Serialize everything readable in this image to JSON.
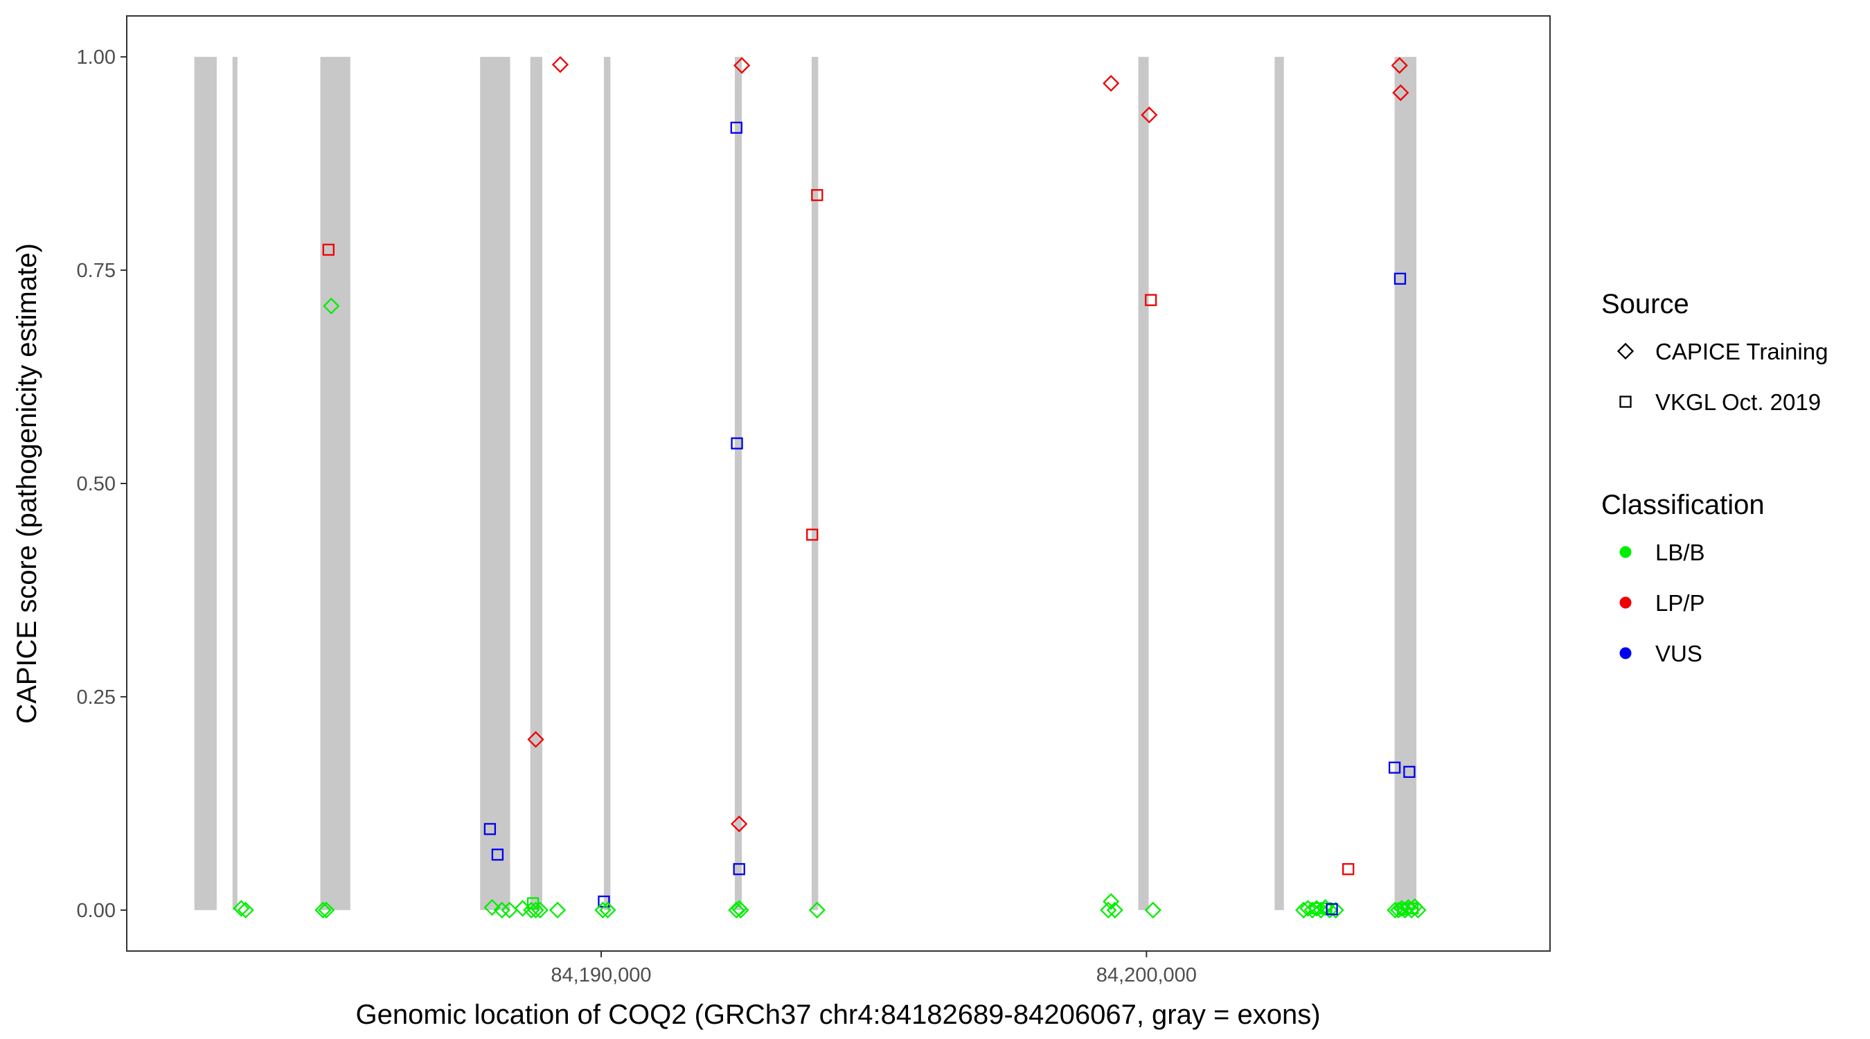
{
  "chart_data": {
    "type": "scatter",
    "xlabel": "Genomic location of COQ2 (GRCh37 chr4:84182689-84206067, gray = exons)",
    "ylabel": "CAPICE score (pathogenicity estimate)",
    "xlim": [
      84181300,
      84207400
    ],
    "ylim": [
      -0.048,
      1.048
    ],
    "x_ticks": [
      84190000,
      84200000
    ],
    "x_tick_labels": [
      "84,190,000",
      "84,200,000"
    ],
    "y_ticks": [
      0,
      0.25,
      0.5,
      0.75,
      1
    ],
    "y_tick_labels": [
      "0.00",
      "0.25",
      "0.50",
      "0.75",
      "1.00"
    ],
    "grid": false,
    "legend_position": "right",
    "exons": [
      [
        84182540,
        84182950
      ],
      [
        84183240,
        84183330
      ],
      [
        84184850,
        84185400
      ],
      [
        84187780,
        84188330
      ],
      [
        84188700,
        84188920
      ],
      [
        84190050,
        84190170
      ],
      [
        84192450,
        84192580
      ],
      [
        84193860,
        84193980
      ],
      [
        84199850,
        84200040
      ],
      [
        84202350,
        84202520
      ],
      [
        84204550,
        84204950
      ]
    ],
    "legend_source": {
      "title": "Source",
      "entries": [
        {
          "label": "CAPICE Training",
          "shape": "diamond"
        },
        {
          "label": "VKGL Oct. 2019",
          "shape": "square"
        }
      ]
    },
    "legend_classification": {
      "title": "Classification",
      "entries": [
        {
          "label": "LB/B",
          "color": "#00ee00"
        },
        {
          "label": "LP/P",
          "color": "#ee0000"
        },
        {
          "label": "VUS",
          "color": "#0000ee"
        }
      ]
    },
    "points": [
      {
        "x": 84183400,
        "y": 0.002,
        "source": "CAPICE Training",
        "class": "LB/B"
      },
      {
        "x": 84183480,
        "y": 0.0,
        "source": "CAPICE Training",
        "class": "LB/B"
      },
      {
        "x": 84184900,
        "y": 0.0,
        "source": "CAPICE Training",
        "class": "LB/B"
      },
      {
        "x": 84184960,
        "y": 0.0,
        "source": "CAPICE Training",
        "class": "LB/B"
      },
      {
        "x": 84185050,
        "y": 0.708,
        "source": "CAPICE Training",
        "class": "LB/B"
      },
      {
        "x": 84185000,
        "y": 0.774,
        "source": "VKGL Oct. 2019",
        "class": "LP/P"
      },
      {
        "x": 84187960,
        "y": 0.095,
        "source": "VKGL Oct. 2019",
        "class": "VUS"
      },
      {
        "x": 84188100,
        "y": 0.065,
        "source": "VKGL Oct. 2019",
        "class": "VUS"
      },
      {
        "x": 84188000,
        "y": 0.003,
        "source": "CAPICE Training",
        "class": "LB/B"
      },
      {
        "x": 84188180,
        "y": 0.0,
        "source": "CAPICE Training",
        "class": "LB/B"
      },
      {
        "x": 84188320,
        "y": 0.0,
        "source": "CAPICE Training",
        "class": "LB/B"
      },
      {
        "x": 84188560,
        "y": 0.002,
        "source": "CAPICE Training",
        "class": "LB/B"
      },
      {
        "x": 84188720,
        "y": 0.0,
        "source": "CAPICE Training",
        "class": "LB/B"
      },
      {
        "x": 84188800,
        "y": 0.0,
        "source": "CAPICE Training",
        "class": "LB/B"
      },
      {
        "x": 84188880,
        "y": 0.0,
        "source": "CAPICE Training",
        "class": "LB/B"
      },
      {
        "x": 84189200,
        "y": 0.0,
        "source": "CAPICE Training",
        "class": "LB/B"
      },
      {
        "x": 84188750,
        "y": 0.008,
        "source": "VKGL Oct. 2019",
        "class": "LB/B"
      },
      {
        "x": 84188800,
        "y": 0.2,
        "source": "CAPICE Training",
        "class": "LP/P"
      },
      {
        "x": 84189250,
        "y": 0.991,
        "source": "CAPICE Training",
        "class": "LP/P"
      },
      {
        "x": 84190050,
        "y": 0.01,
        "source": "VKGL Oct. 2019",
        "class": "VUS"
      },
      {
        "x": 84190030,
        "y": 0.0,
        "source": "CAPICE Training",
        "class": "LB/B"
      },
      {
        "x": 84190120,
        "y": 0.0,
        "source": "CAPICE Training",
        "class": "LB/B"
      },
      {
        "x": 84192480,
        "y": 0.917,
        "source": "VKGL Oct. 2019",
        "class": "VUS"
      },
      {
        "x": 84192490,
        "y": 0.547,
        "source": "VKGL Oct. 2019",
        "class": "VUS"
      },
      {
        "x": 84192530,
        "y": 0.048,
        "source": "VKGL Oct. 2019",
        "class": "VUS"
      },
      {
        "x": 84192580,
        "y": 0.99,
        "source": "CAPICE Training",
        "class": "LP/P"
      },
      {
        "x": 84192530,
        "y": 0.101,
        "source": "CAPICE Training",
        "class": "LP/P"
      },
      {
        "x": 84192480,
        "y": 0.0,
        "source": "CAPICE Training",
        "class": "LB/B"
      },
      {
        "x": 84192530,
        "y": 0.002,
        "source": "CAPICE Training",
        "class": "LB/B"
      },
      {
        "x": 84192560,
        "y": 0.0,
        "source": "CAPICE Training",
        "class": "LB/B"
      },
      {
        "x": 84193960,
        "y": 0.838,
        "source": "VKGL Oct. 2019",
        "class": "LP/P"
      },
      {
        "x": 84193870,
        "y": 0.44,
        "source": "VKGL Oct. 2019",
        "class": "LP/P"
      },
      {
        "x": 84193960,
        "y": 0.0,
        "source": "CAPICE Training",
        "class": "LB/B"
      },
      {
        "x": 84199350,
        "y": 0.969,
        "source": "CAPICE Training",
        "class": "LP/P"
      },
      {
        "x": 84200050,
        "y": 0.932,
        "source": "CAPICE Training",
        "class": "LP/P"
      },
      {
        "x": 84200080,
        "y": 0.715,
        "source": "VKGL Oct. 2019",
        "class": "LP/P"
      },
      {
        "x": 84199350,
        "y": 0.01,
        "source": "CAPICE Training",
        "class": "LB/B"
      },
      {
        "x": 84199300,
        "y": 0.0,
        "source": "CAPICE Training",
        "class": "LB/B"
      },
      {
        "x": 84199420,
        "y": 0.0,
        "source": "CAPICE Training",
        "class": "LB/B"
      },
      {
        "x": 84200120,
        "y": 0.0,
        "source": "CAPICE Training",
        "class": "LB/B"
      },
      {
        "x": 84202880,
        "y": 0.0,
        "source": "CAPICE Training",
        "class": "LB/B"
      },
      {
        "x": 84202960,
        "y": 0.002,
        "source": "CAPICE Training",
        "class": "LB/B"
      },
      {
        "x": 84203040,
        "y": 0.0,
        "source": "CAPICE Training",
        "class": "LB/B"
      },
      {
        "x": 84203120,
        "y": 0.002,
        "source": "CAPICE Training",
        "class": "LB/B"
      },
      {
        "x": 84203200,
        "y": 0.0,
        "source": "CAPICE Training",
        "class": "LB/B"
      },
      {
        "x": 84203280,
        "y": 0.003,
        "source": "CAPICE Training",
        "class": "LB/B"
      },
      {
        "x": 84203360,
        "y": 0.0,
        "source": "CAPICE Training",
        "class": "LB/B"
      },
      {
        "x": 84203470,
        "y": 0.0,
        "source": "CAPICE Training",
        "class": "LB/B"
      },
      {
        "x": 84203100,
        "y": 0.002,
        "source": "VKGL Oct. 2019",
        "class": "LB/B"
      },
      {
        "x": 84203300,
        "y": 0.002,
        "source": "VKGL Oct. 2019",
        "class": "LB/B"
      },
      {
        "x": 84203700,
        "y": 0.048,
        "source": "VKGL Oct. 2019",
        "class": "LP/P"
      },
      {
        "x": 84203400,
        "y": 0.001,
        "source": "VKGL Oct. 2019",
        "class": "VUS"
      },
      {
        "x": 84204640,
        "y": 0.99,
        "source": "CAPICE Training",
        "class": "LP/P"
      },
      {
        "x": 84204660,
        "y": 0.958,
        "source": "CAPICE Training",
        "class": "LP/P"
      },
      {
        "x": 84204650,
        "y": 0.74,
        "source": "VKGL Oct. 2019",
        "class": "VUS"
      },
      {
        "x": 84204550,
        "y": 0.167,
        "source": "VKGL Oct. 2019",
        "class": "VUS"
      },
      {
        "x": 84204820,
        "y": 0.162,
        "source": "VKGL Oct. 2019",
        "class": "VUS"
      },
      {
        "x": 84204560,
        "y": 0.0,
        "source": "CAPICE Training",
        "class": "LB/B"
      },
      {
        "x": 84204620,
        "y": 0.0,
        "source": "CAPICE Training",
        "class": "LB/B"
      },
      {
        "x": 84204680,
        "y": 0.002,
        "source": "CAPICE Training",
        "class": "LB/B"
      },
      {
        "x": 84204740,
        "y": 0.0,
        "source": "CAPICE Training",
        "class": "LB/B"
      },
      {
        "x": 84204800,
        "y": 0.003,
        "source": "CAPICE Training",
        "class": "LB/B"
      },
      {
        "x": 84204860,
        "y": 0.0,
        "source": "CAPICE Training",
        "class": "LB/B"
      },
      {
        "x": 84204920,
        "y": 0.004,
        "source": "CAPICE Training",
        "class": "LB/B"
      },
      {
        "x": 84204980,
        "y": 0.0,
        "source": "CAPICE Training",
        "class": "LB/B"
      },
      {
        "x": 84204700,
        "y": 0.001,
        "source": "VKGL Oct. 2019",
        "class": "LB/B"
      },
      {
        "x": 84204880,
        "y": 0.002,
        "source": "VKGL Oct. 2019",
        "class": "LB/B"
      }
    ]
  }
}
